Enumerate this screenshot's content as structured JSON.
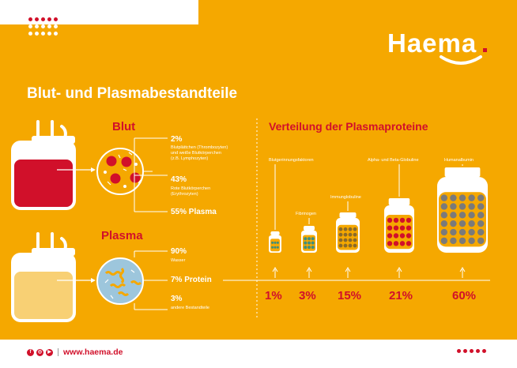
{
  "brand": {
    "logo": "Haema",
    "website": "www.haema.de",
    "accent": "#d1102a",
    "background": "#f5a800"
  },
  "title": "Blut- und Plasmabestandteile",
  "blut": {
    "heading": "Blut",
    "items": [
      {
        "pct": "2%",
        "desc": [
          "Blutplättchen (Thrombozyten)",
          "und weiße Blutkörperchen",
          "(z.B. Lymphozyten)"
        ]
      },
      {
        "pct": "43%",
        "desc": [
          "Rote Blutkörperchen",
          "(Erythrozyten)"
        ]
      },
      {
        "pct": "55% Plasma",
        "desc": []
      }
    ]
  },
  "plasma": {
    "heading": "Plasma",
    "items": [
      {
        "pct": "90%",
        "desc": [
          "Wasser"
        ]
      },
      {
        "pct": "7% Protein",
        "desc": []
      },
      {
        "pct": "3%",
        "desc": [
          "andere Bestandteile"
        ]
      }
    ]
  },
  "verteilung": {
    "heading": "Verteilung der Plasmaproteine",
    "proteins": [
      {
        "label": "Blutgerinnungsfaktoren",
        "pct": "1%",
        "value": 1
      },
      {
        "label": "Fibrinogen",
        "pct": "3%",
        "value": 3
      },
      {
        "label": "Immunglobuline",
        "pct": "15%",
        "value": 15
      },
      {
        "label": "Alpha- und Beta-Globuline",
        "pct": "21%",
        "value": 21
      },
      {
        "label": "Humanalbumin",
        "pct": "60%",
        "value": 60
      }
    ]
  },
  "social_icons": [
    "facebook-icon",
    "instagram-icon",
    "youtube-icon"
  ]
}
